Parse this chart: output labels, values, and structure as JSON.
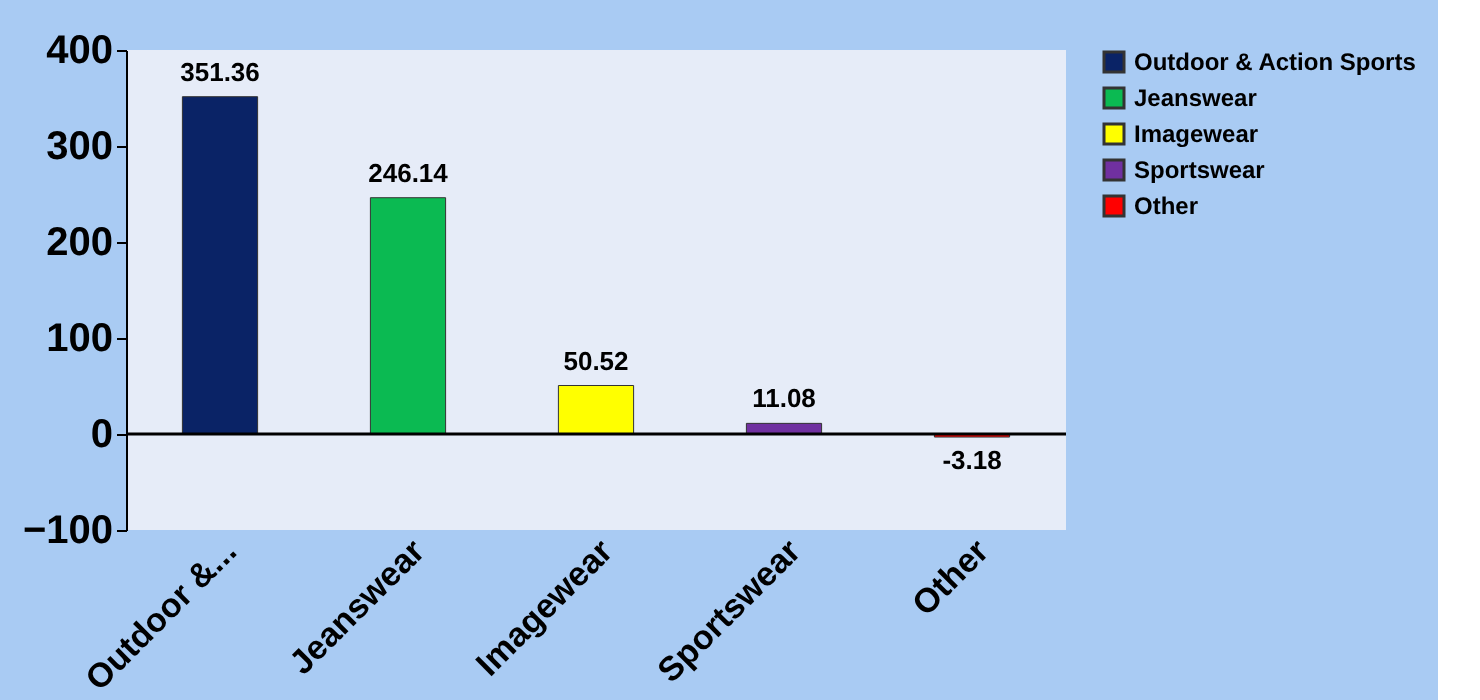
{
  "chart_data": {
    "type": "bar",
    "categories": [
      "Outdoor &...",
      "Jeanswear",
      "Imagewear",
      "Sportswear",
      "Other"
    ],
    "series": [
      {
        "name": "Outdoor & Action Sports",
        "color": "#0a2366",
        "values": [
          351.36,
          null,
          null,
          null,
          null
        ]
      },
      {
        "name": "Jeanswear",
        "color": "#0bba52",
        "values": [
          null,
          246.14,
          null,
          null,
          null
        ]
      },
      {
        "name": "Imagewear",
        "color": "#ffff00",
        "values": [
          null,
          null,
          50.52,
          null,
          null
        ]
      },
      {
        "name": "Sportswear",
        "color": "#7030a0",
        "values": [
          null,
          null,
          null,
          11.08,
          null
        ]
      },
      {
        "name": "Other",
        "color": "#ff0000",
        "values": [
          null,
          null,
          null,
          null,
          -3.18
        ]
      }
    ],
    "ylim": [
      -100,
      400
    ],
    "yticks": [
      -100,
      0,
      100,
      200,
      300,
      400
    ],
    "ref_lines": [
      {
        "axis": "y",
        "value": 0,
        "label": null,
        "color": "#000000"
      }
    ],
    "data_labels": true,
    "grid": false,
    "legend": "right"
  }
}
